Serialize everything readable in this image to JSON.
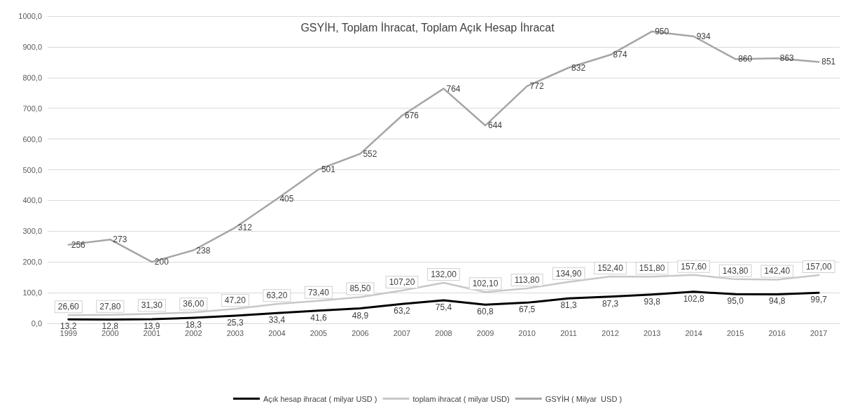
{
  "chart_data": {
    "type": "line",
    "title": "GSYİH, Toplam İhracat, Toplam Açık Hesap İhracat",
    "categories": [
      "1999",
      "2000",
      "2001",
      "2002",
      "2003",
      "2004",
      "2005",
      "2006",
      "2007",
      "2008",
      "2009",
      "2010",
      "2011",
      "2012",
      "2013",
      "2014",
      "2015",
      "2016",
      "2017"
    ],
    "series": [
      {
        "name": "Açık hesap ihracat ( milyar USD )",
        "color": "#000000",
        "values": [
          13.2,
          12.8,
          13.9,
          18.3,
          25.3,
          33.4,
          41.6,
          48.9,
          63.2,
          75.4,
          60.8,
          67.5,
          81.3,
          87.3,
          93.8,
          102.8,
          95.0,
          94.8,
          99.7
        ],
        "value_labels": [
          "13,2",
          "12,8",
          "13,9",
          "18,3",
          "25,3",
          "33,4",
          "41,6",
          "48,9",
          "63,2",
          "75,4",
          "60,8",
          "67,5",
          "81,3",
          "87,3",
          "93,8",
          "102,8",
          "95,0",
          "94,8",
          "99,7"
        ]
      },
      {
        "name": "toplam ihracat ( milyar USD)",
        "color": "#c8c8c8",
        "values": [
          26.6,
          27.8,
          31.3,
          36.0,
          47.2,
          63.2,
          73.4,
          85.5,
          107.2,
          132.0,
          102.1,
          113.8,
          134.9,
          152.4,
          151.8,
          157.6,
          143.8,
          142.4,
          157.0
        ],
        "value_labels": [
          "26,60",
          "27,80",
          "31,30",
          "36,00",
          "47,20",
          "63,20",
          "73,40",
          "85,50",
          "107,20",
          "132,00",
          "102,10",
          "113,80",
          "134,90",
          "152,40",
          "151,80",
          "157,60",
          "143,80",
          "142,40",
          "157,00"
        ]
      },
      {
        "name": "GSYİH ( Milyar  USD )",
        "color": "#a5a5a5",
        "values": [
          256,
          273,
          200,
          238,
          312,
          405,
          501,
          552,
          676,
          764,
          644,
          772,
          832,
          874,
          950,
          934,
          860,
          863,
          851
        ],
        "value_labels": [
          "256",
          "273",
          "200",
          "238",
          "312",
          "405",
          "501",
          "552",
          "676",
          "764",
          "644",
          "772",
          "832",
          "874",
          "950",
          "934",
          "860",
          "863",
          "851"
        ]
      }
    ],
    "ylim": [
      0,
      1000
    ],
    "yticks": [
      {
        "value": 0,
        "label": "0,0"
      },
      {
        "value": 100,
        "label": "100,0"
      },
      {
        "value": 200,
        "label": "200,0"
      },
      {
        "value": 300,
        "label": "300,0"
      },
      {
        "value": 400,
        "label": "400,0"
      },
      {
        "value": 500,
        "label": "500,0"
      },
      {
        "value": 600,
        "label": "600,0"
      },
      {
        "value": 700,
        "label": "700,0"
      },
      {
        "value": 800,
        "label": "800,0"
      },
      {
        "value": 900,
        "label": "900,0"
      },
      {
        "value": 1000,
        "label": "1000,0"
      }
    ],
    "grid": "y",
    "legend": "bottom",
    "marker": "none",
    "line_style": "solid"
  }
}
